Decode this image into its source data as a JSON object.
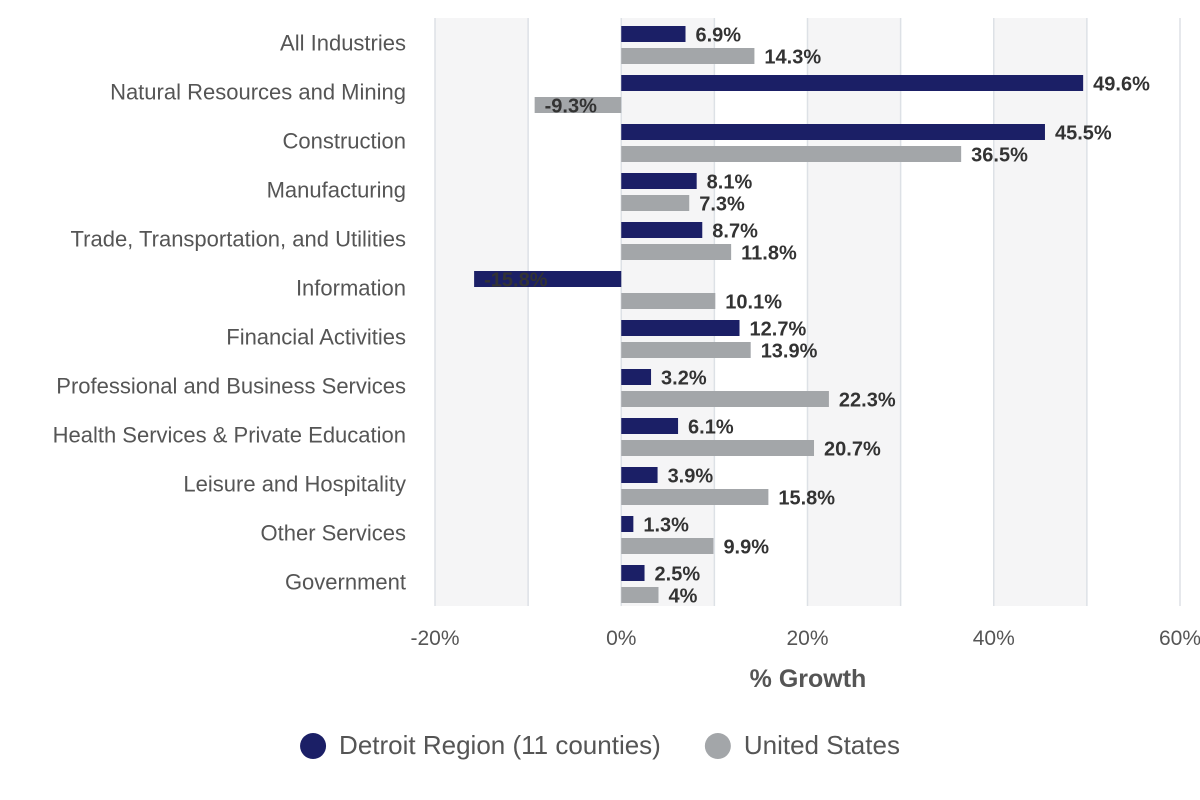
{
  "chart_data": {
    "type": "bar",
    "orientation": "horizontal",
    "categories": [
      "All Industries",
      "Natural Resources and Mining",
      "Construction",
      "Manufacturing",
      "Trade, Transportation, and Utilities",
      "Information",
      "Financial Activities",
      "Professional and Business Services",
      "Health Services & Private Education",
      "Leisure and Hospitality",
      "Other Services",
      "Government"
    ],
    "series": [
      {
        "name": "Detroit Region (11 counties)",
        "color": "#1b1f66",
        "values": [
          6.9,
          49.6,
          45.5,
          8.1,
          8.7,
          -15.8,
          12.7,
          3.2,
          6.1,
          3.9,
          1.3,
          2.5
        ],
        "labels": [
          "6.9%",
          "49.6%",
          "45.5%",
          "8.1%",
          "8.7%",
          "-15.8%",
          "12.7%",
          "3.2%",
          "6.1%",
          "3.9%",
          "1.3%",
          "2.5%"
        ]
      },
      {
        "name": "United States",
        "color": "#a3a6a9",
        "values": [
          14.3,
          -9.3,
          36.5,
          7.3,
          11.8,
          10.1,
          13.9,
          22.3,
          20.7,
          15.8,
          9.9,
          4
        ],
        "labels": [
          "14.3%",
          "-9.3%",
          "36.5%",
          "7.3%",
          "11.8%",
          "10.1%",
          "13.9%",
          "22.3%",
          "20.7%",
          "15.8%",
          "9.9%",
          "4%"
        ]
      }
    ],
    "xlim": [
      -20,
      60
    ],
    "xticks": [
      -20,
      0,
      20,
      40,
      60
    ],
    "xtick_labels": [
      "-20%",
      "0%",
      "20%",
      "40%",
      "60%"
    ],
    "xlabel": "% Growth",
    "ylabel": "",
    "title": "",
    "grid": true,
    "legend_position": "bottom-center"
  }
}
